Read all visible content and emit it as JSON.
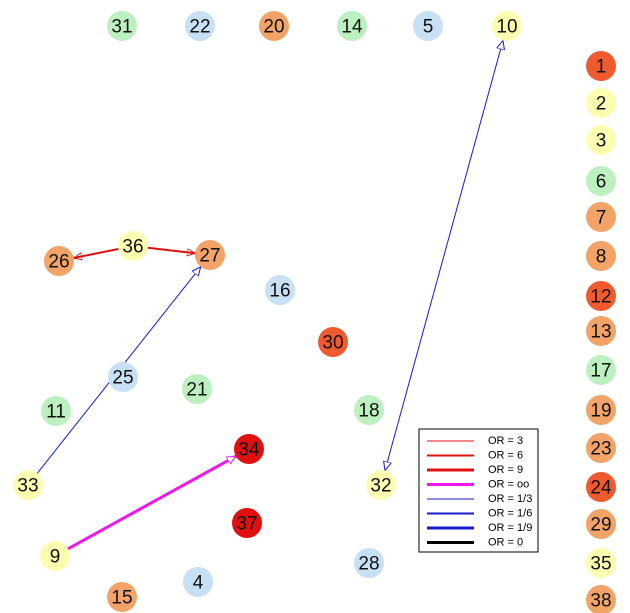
{
  "colors": {
    "light_blue": "#c8e0f4",
    "light_green": "#bdf0c0",
    "orange": "#f2a468",
    "yellow": "#fdfdb2",
    "red_orange": "#ef5b2e",
    "red": "#e01010",
    "edge_red": "#e01010",
    "edge_blue": "#1a1acc",
    "edge_magenta": "#ee18ee",
    "edge_black": "#000000"
  },
  "nodes": [
    {
      "id": "31",
      "color": "#bdf0c0"
    },
    {
      "id": "22",
      "color": "#c8e0f4"
    },
    {
      "id": "20",
      "color": "#f2a468"
    },
    {
      "id": "14",
      "color": "#bdf0c0"
    },
    {
      "id": "5",
      "color": "#c8e0f4"
    },
    {
      "id": "10",
      "color": "#fdfdb2"
    },
    {
      "id": "36",
      "color": "#fdfdb2"
    },
    {
      "id": "26",
      "color": "#f2a468"
    },
    {
      "id": "27",
      "color": "#f2a468"
    },
    {
      "id": "16",
      "color": "#c8e0f4"
    },
    {
      "id": "30",
      "color": "#ef5b2e"
    },
    {
      "id": "25",
      "color": "#c8e0f4"
    },
    {
      "id": "21",
      "color": "#bdf0c0"
    },
    {
      "id": "11",
      "color": "#bdf0c0"
    },
    {
      "id": "18",
      "color": "#bdf0c0"
    },
    {
      "id": "34",
      "color": "#e01010"
    },
    {
      "id": "33",
      "color": "#fdfdb2"
    },
    {
      "id": "32",
      "color": "#fdfdb2"
    },
    {
      "id": "37",
      "color": "#e01010"
    },
    {
      "id": "9",
      "color": "#fdfdb2"
    },
    {
      "id": "28",
      "color": "#c8e0f4"
    },
    {
      "id": "4",
      "color": "#c8e0f4"
    },
    {
      "id": "15",
      "color": "#f2a468"
    },
    {
      "id": "1",
      "color": "#ef5b2e"
    },
    {
      "id": "2",
      "color": "#fdfdb2"
    },
    {
      "id": "3",
      "color": "#fdfdb2"
    },
    {
      "id": "6",
      "color": "#bdf0c0"
    },
    {
      "id": "7",
      "color": "#f2a468"
    },
    {
      "id": "8",
      "color": "#f2a468"
    },
    {
      "id": "12",
      "color": "#ef5b2e"
    },
    {
      "id": "13",
      "color": "#f2a468"
    },
    {
      "id": "17",
      "color": "#bdf0c0"
    },
    {
      "id": "19",
      "color": "#f2a468"
    },
    {
      "id": "23",
      "color": "#f2a468"
    },
    {
      "id": "24",
      "color": "#ef5b2e"
    },
    {
      "id": "29",
      "color": "#f2a468"
    },
    {
      "id": "35",
      "color": "#fdfdb2"
    },
    {
      "id": "38",
      "color": "#f2a468"
    }
  ],
  "edges": [
    {
      "from": "36",
      "to": "26",
      "or": "OR = 6"
    },
    {
      "from": "36",
      "to": "27",
      "or": "OR = 6"
    },
    {
      "from": "33",
      "to": "27",
      "or": "OR = 1/3"
    },
    {
      "from": "9",
      "to": "34",
      "or": "OR = oo"
    },
    {
      "from": "10",
      "to": "32",
      "or": "OR = 1/3",
      "bidirectional": true
    }
  ],
  "legend": {
    "entries": [
      {
        "label": "OR = 3",
        "color": "#e01010",
        "width": 1
      },
      {
        "label": "OR = 6",
        "color": "#e01010",
        "width": 2
      },
      {
        "label": "OR = 9",
        "color": "#e01010",
        "width": 3
      },
      {
        "label": "OR = oo",
        "color": "#ee18ee",
        "width": 3
      },
      {
        "label": "OR = 1/3",
        "color": "#1a1acc",
        "width": 1
      },
      {
        "label": "OR = 1/6",
        "color": "#1a1acc",
        "width": 2
      },
      {
        "label": "OR = 1/9",
        "color": "#1a1acc",
        "width": 3
      },
      {
        "label": "OR = 0",
        "color": "#000000",
        "width": 3
      }
    ]
  }
}
